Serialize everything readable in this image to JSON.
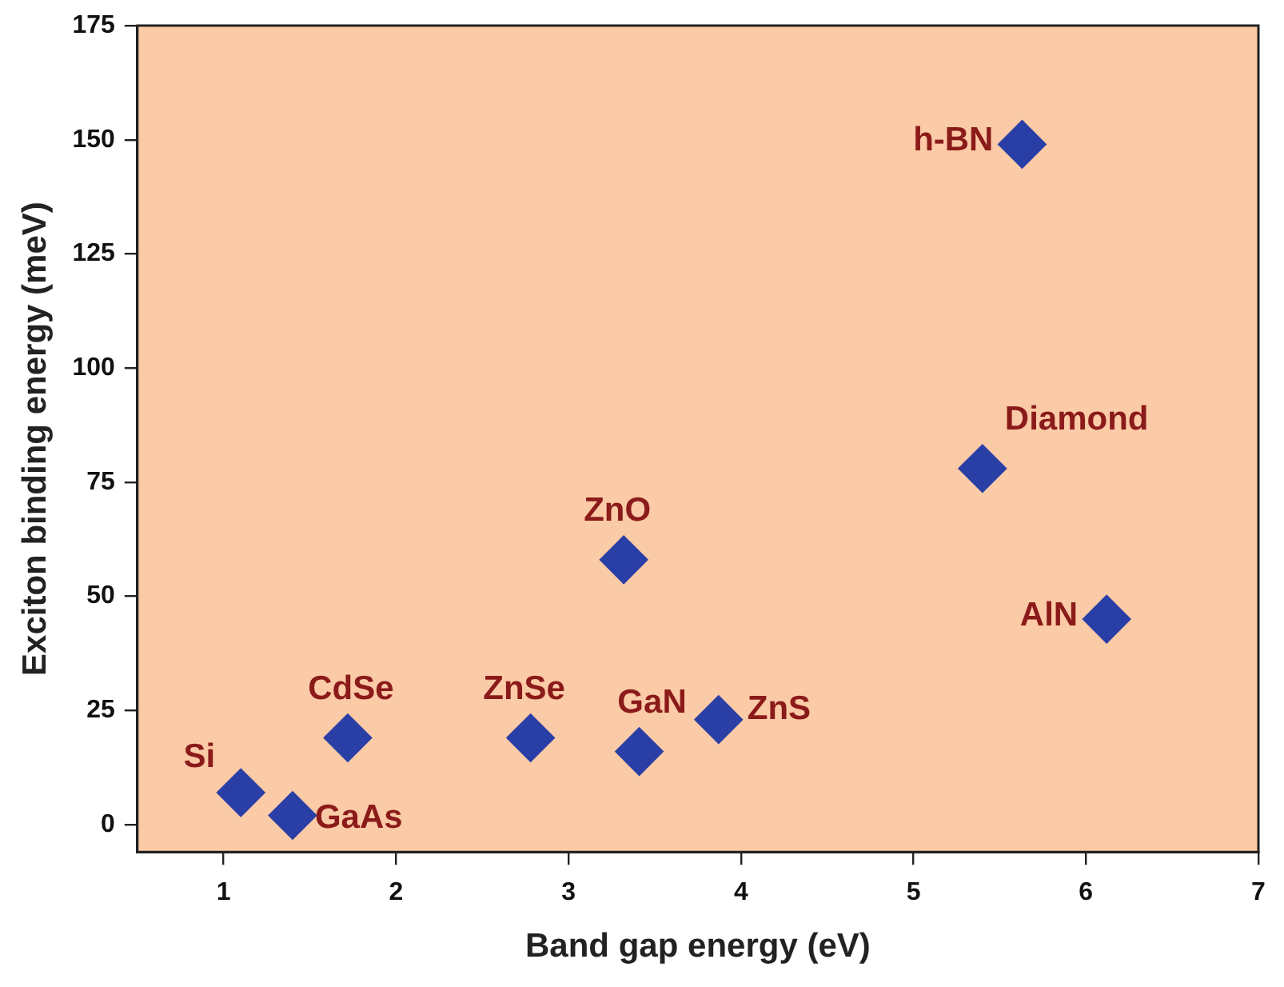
{
  "chart_data": {
    "type": "scatter",
    "xlabel": "Band gap energy (eV)",
    "ylabel": "Exciton binding energy (meV)",
    "x": [
      1.1,
      1.4,
      1.72,
      2.78,
      3.41,
      3.87,
      3.32,
      5.4,
      6.12,
      5.63
    ],
    "series": [
      {
        "color": "#2a3fa6",
        "values": [
          7,
          2,
          19,
          19,
          16,
          23,
          58,
          78,
          45,
          149
        ]
      }
    ],
    "xlim": [
      0.5,
      7
    ],
    "xticks": [
      1,
      2,
      3,
      4,
      5,
      6,
      7
    ],
    "ylim": [
      -6,
      175
    ],
    "yticks": [
      0,
      25,
      50,
      75,
      100,
      125,
      150,
      175
    ],
    "grid": false,
    "legend": false,
    "marker": "diamond",
    "annotations": [
      {
        "text": "Si",
        "x": 1.1,
        "y": 7
      },
      {
        "text": "GaAs",
        "x": 1.4,
        "y": 2
      },
      {
        "text": "CdSe",
        "x": 1.72,
        "y": 19
      },
      {
        "text": "ZnSe",
        "x": 2.78,
        "y": 19
      },
      {
        "text": "GaN",
        "x": 3.41,
        "y": 16
      },
      {
        "text": "ZnS",
        "x": 3.87,
        "y": 23
      },
      {
        "text": "ZnO",
        "x": 3.32,
        "y": 58
      },
      {
        "text": "Diamond",
        "x": 5.4,
        "y": 78
      },
      {
        "text": "AlN",
        "x": 6.12,
        "y": 45
      },
      {
        "text": "h-BN",
        "x": 5.63,
        "y": 149
      }
    ]
  }
}
